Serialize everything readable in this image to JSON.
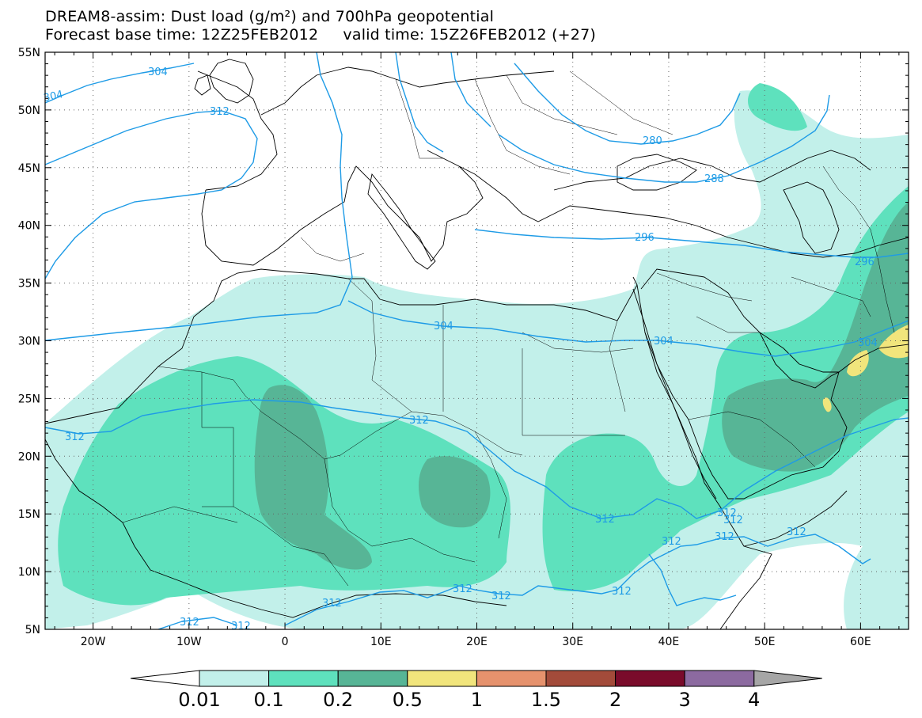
{
  "title": {
    "line1": "DREAM8-assim: Dust load (g/m²) and 700hPa geopotential",
    "line2": "Forecast base time: 12Z25FEB2012     valid time: 15Z26FEB2012 (+27)"
  },
  "axes": {
    "lon_ticks": [
      "20W",
      "10W",
      "0",
      "10E",
      "20E",
      "30E",
      "40E",
      "50E",
      "60E"
    ],
    "lat_ticks": [
      "55N",
      "50N",
      "45N",
      "40N",
      "35N",
      "30N",
      "25N",
      "20N",
      "15N",
      "10N",
      "5N"
    ],
    "lon_range": [
      -25,
      65
    ],
    "lat_range": [
      5,
      55
    ]
  },
  "colorbar": {
    "labels": [
      "0.01",
      "0.1",
      "0.2",
      "0.5",
      "1",
      "1.5",
      "2",
      "3",
      "4"
    ],
    "colors": [
      "#ffffff",
      "#c2f0ea",
      "#5ee1bd",
      "#57b596",
      "#f1e57c",
      "#e6926d",
      "#a34b3a",
      "#7a0b2b",
      "#8c6aa0",
      "#a6a6a6"
    ]
  },
  "contour_labels": [
    "304",
    "312",
    "312",
    "304",
    "312",
    "304",
    "288",
    "296",
    "280",
    "296",
    "304",
    "312",
    "312",
    "312",
    "312",
    "312",
    "312",
    "312",
    "312",
    "312",
    "312",
    "312",
    "312",
    "312",
    "312",
    "304"
  ],
  "colors": {
    "contour": "#1e9be6",
    "coast": "#000000",
    "dust_001": "#c2f0ea",
    "dust_01": "#5ee1bd",
    "dust_02": "#57b596",
    "dust_05": "#f1e57c"
  }
}
